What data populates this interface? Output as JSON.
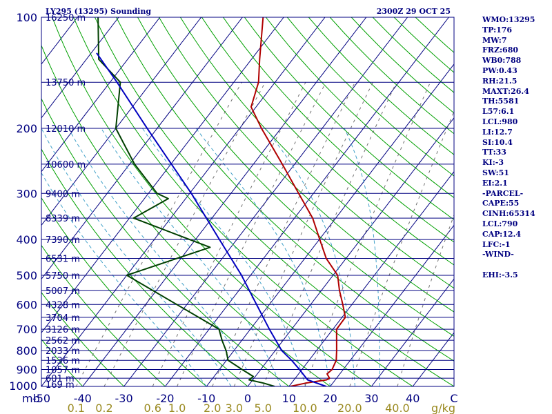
{
  "chart_data": {
    "type": "line",
    "title": "LY295 (13295) Sounding",
    "valid_time": "2300Z 29 OCT 25",
    "xlabel": "C",
    "ylabel": "mb",
    "mixing_ratio_label": "g/kg",
    "xlim": [
      -50,
      50
    ],
    "ylim": [
      1000,
      100
    ],
    "y_scale": "log",
    "grid": true,
    "pressure_ticks": [
      {
        "p": 100,
        "label": "100"
      },
      {
        "p": 200,
        "label": "200"
      },
      {
        "p": 300,
        "label": "300"
      },
      {
        "p": 400,
        "label": "400"
      },
      {
        "p": 500,
        "label": "500"
      },
      {
        "p": 600,
        "label": "600"
      },
      {
        "p": 700,
        "label": "700"
      },
      {
        "p": 800,
        "label": "800"
      },
      {
        "p": 900,
        "label": "900"
      },
      {
        "p": 1000,
        "label": "1000"
      }
    ],
    "temperature_ticks": [
      {
        "t": -50,
        "label": "-50"
      },
      {
        "t": -40,
        "label": "-40"
      },
      {
        "t": -30,
        "label": "-30"
      },
      {
        "t": -20,
        "label": "-20"
      },
      {
        "t": -10,
        "label": "-10"
      },
      {
        "t": 0,
        "label": "0"
      },
      {
        "t": 10,
        "label": "10"
      },
      {
        "t": 20,
        "label": "20"
      },
      {
        "t": 30,
        "label": "30"
      },
      {
        "t": 40,
        "label": "40"
      },
      {
        "t": 50,
        "label": "C"
      }
    ],
    "mixing_ratio_ticks": [
      {
        "w": 0.1,
        "label": "0.1"
      },
      {
        "w": 0.2,
        "label": "0.2"
      },
      {
        "w": 0.6,
        "label": "0.6"
      },
      {
        "w": 1.0,
        "label": "1.0"
      },
      {
        "w": 2.0,
        "label": "2.0"
      },
      {
        "w": 3.0,
        "label": "3.0"
      },
      {
        "w": 5.0,
        "label": "5.0"
      },
      {
        "w": 10.0,
        "label": "10.0"
      },
      {
        "w": 20.0,
        "label": "20.0"
      },
      {
        "w": 40.0,
        "label": "40.0"
      }
    ],
    "height_levels": [
      {
        "p": 100,
        "label": "16250 m"
      },
      {
        "p": 150,
        "label": "13750 m"
      },
      {
        "p": 200,
        "label": "12010 m"
      },
      {
        "p": 250,
        "label": "10600 m"
      },
      {
        "p": 300,
        "label": "9400 m"
      },
      {
        "p": 350,
        "label": "8339 m"
      },
      {
        "p": 400,
        "label": "7390 m"
      },
      {
        "p": 450,
        "label": "6531 m"
      },
      {
        "p": 500,
        "label": "5750 m"
      },
      {
        "p": 550,
        "label": "5007 m"
      },
      {
        "p": 600,
        "label": "4328 m"
      },
      {
        "p": 650,
        "label": "3704 m"
      },
      {
        "p": 700,
        "label": "3126 m"
      },
      {
        "p": 750,
        "label": "2562 m"
      },
      {
        "p": 800,
        "label": "2033 m"
      },
      {
        "p": 850,
        "label": "1536 m"
      },
      {
        "p": 900,
        "label": "1057 m"
      },
      {
        "p": 950,
        "label": "601 m"
      },
      {
        "p": 1000,
        "label": "169 m"
      }
    ],
    "series": [
      {
        "key": "temperature",
        "color": "#b00000",
        "points": [
          {
            "p": 1000,
            "t": 10.3
          },
          {
            "p": 980,
            "t": 13.4
          },
          {
            "p": 960,
            "t": 17.9
          },
          {
            "p": 950,
            "t": 18.3
          },
          {
            "p": 925,
            "t": 16.9
          },
          {
            "p": 900,
            "t": 17.3
          },
          {
            "p": 850,
            "t": 16.6
          },
          {
            "p": 800,
            "t": 14.9
          },
          {
            "p": 700,
            "t": 10.9
          },
          {
            "p": 650,
            "t": 10.8
          },
          {
            "p": 600,
            "t": 7.8
          },
          {
            "p": 550,
            "t": 4.4
          },
          {
            "p": 500,
            "t": 1.1
          },
          {
            "p": 450,
            "t": -4.8
          },
          {
            "p": 400,
            "t": -9.9
          },
          {
            "p": 350,
            "t": -15.6
          },
          {
            "p": 300,
            "t": -23.6
          },
          {
            "p": 250,
            "t": -33.0
          },
          {
            "p": 200,
            "t": -44.7
          },
          {
            "p": 175,
            "t": -51.2
          },
          {
            "p": 150,
            "t": -54.0
          },
          {
            "p": 130,
            "t": -58.0
          },
          {
            "p": 100,
            "t": -65.0
          }
        ]
      },
      {
        "key": "dewpoint",
        "color": "#004000",
        "points": [
          {
            "p": 1000,
            "t": 6.5
          },
          {
            "p": 980,
            "t": 3.3
          },
          {
            "p": 960,
            "t": -0.9
          },
          {
            "p": 940,
            "t": -0.5
          },
          {
            "p": 900,
            "t": -4.5
          },
          {
            "p": 850,
            "t": -9.6
          },
          {
            "p": 800,
            "t": -11.9
          },
          {
            "p": 750,
            "t": -14.8
          },
          {
            "p": 700,
            "t": -17.6
          },
          {
            "p": 500,
            "t": -50.0
          },
          {
            "p": 420,
            "t": -35.0
          },
          {
            "p": 350,
            "t": -59.0
          },
          {
            "p": 310,
            "t": -54.2
          },
          {
            "p": 300,
            "t": -57.9
          },
          {
            "p": 250,
            "t": -68.8
          },
          {
            "p": 200,
            "t": -80.0
          },
          {
            "p": 150,
            "t": -87.5
          },
          {
            "p": 130,
            "t": -97.0
          },
          {
            "p": 100,
            "t": -105.0
          }
        ]
      },
      {
        "key": "parcel",
        "color": "#0000c0",
        "points": [
          {
            "p": 1000,
            "t": 19.0
          },
          {
            "p": 960,
            "t": 13.3
          },
          {
            "p": 900,
            "t": 9.4
          },
          {
            "p": 850,
            "t": 5.8
          },
          {
            "p": 800,
            "t": 1.6
          },
          {
            "p": 700,
            "t": -5.4
          },
          {
            "p": 600,
            "t": -13.1
          },
          {
            "p": 500,
            "t": -22.2
          },
          {
            "p": 400,
            "t": -34.2
          },
          {
            "p": 300,
            "t": -49.6
          },
          {
            "p": 200,
            "t": -72.4
          },
          {
            "p": 150,
            "t": -88.3
          },
          {
            "p": 125,
            "t": -98.7
          }
        ]
      }
    ],
    "indices": [
      "WMO:13295",
      "TP:176",
      "MW:7",
      "FRZ:680",
      "WB0:788",
      "PW:0.43",
      "RH:21.5",
      "MAXT:26.4",
      "TH:5581",
      "L57:6.1",
      "LCL:980",
      "LI:12.7",
      "SI:10.4",
      "TT:33",
      "KI:-3",
      "SW:51",
      "EI:2.1",
      "-PARCEL-",
      "CAPE:55",
      "CINH:65314",
      "LCL:790",
      "CAP:12.4",
      "LFC:-1",
      "-WIND-",
      "",
      "EHI:-3.5"
    ],
    "colors": {
      "axis": "#000080",
      "isobar": "#000080",
      "isotherm": "#000080",
      "dry_adiabat": "#00a000",
      "moist_adiabat": "#40a0c8",
      "mixing_ratio": "#707070"
    }
  }
}
